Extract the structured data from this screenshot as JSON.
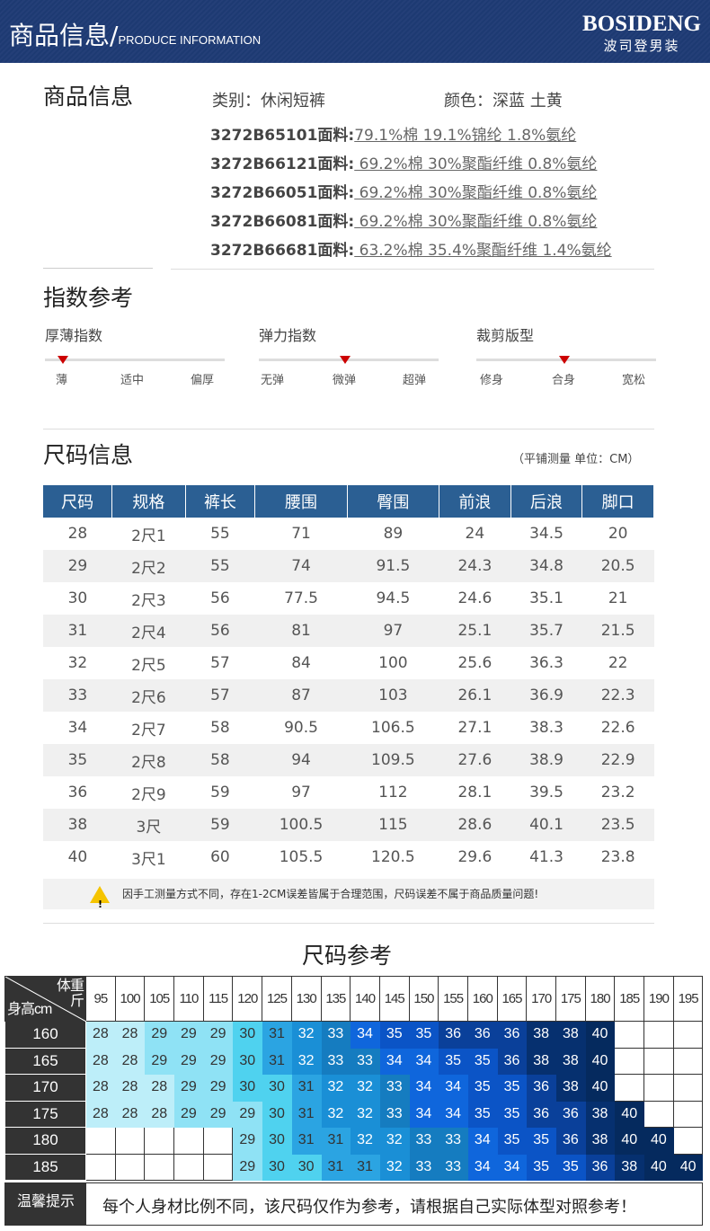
{
  "header": {
    "title": "商品信息/",
    "subtitle": "PRODUCE INFORMATION",
    "brand": "BOSIDENG",
    "brand_cn": "波司登男装"
  },
  "product": {
    "heading": "商品信息",
    "category": "类别：休闲短裤",
    "color": "颜色：深蓝 土黄",
    "fabrics": [
      {
        "code": "3272B65101面料:",
        "value": "79.1%棉 19.1%锦纶 1.8%氨纶"
      },
      {
        "code": "3272B66121面料:",
        "value": " 69.2%棉 30%聚酯纤维 0.8%氨纶"
      },
      {
        "code": "3272B66051面料:",
        "value": " 69.2%棉 30%聚酯纤维 0.8%氨纶"
      },
      {
        "code": "3272B66081面料:",
        "value": " 69.2%棉 30%聚酯纤维 0.8%氨纶"
      },
      {
        "code": "3272B66681面料:",
        "value": " 63.2%棉 35.4%聚酯纤维 1.4%氨纶"
      }
    ]
  },
  "index": {
    "heading": "指数参考",
    "items": [
      {
        "label": "厚薄指数",
        "ticks": [
          "薄",
          "适中",
          "偏厚"
        ],
        "selected": 0
      },
      {
        "label": "弹力指数",
        "ticks": [
          "无弹",
          "微弹",
          "超弹"
        ],
        "selected": 1
      },
      {
        "label": "裁剪版型",
        "ticks": [
          "修身",
          "合身",
          "宽松"
        ],
        "selected": 1
      }
    ]
  },
  "size_info": {
    "heading": "尺码信息",
    "note": "（平铺测量 单位：CM）",
    "headers": [
      "尺码",
      "规格",
      "裤长",
      "腰围",
      "臀围",
      "前浪",
      "后浪",
      "脚口"
    ],
    "rows": [
      [
        "28",
        "2尺1",
        "55",
        "71",
        "89",
        "24",
        "34.5",
        "20"
      ],
      [
        "29",
        "2尺2",
        "55",
        "74",
        "91.5",
        "24.3",
        "34.8",
        "20.5"
      ],
      [
        "30",
        "2尺3",
        "56",
        "77.5",
        "94.5",
        "24.6",
        "35.1",
        "21"
      ],
      [
        "31",
        "2尺4",
        "56",
        "81",
        "97",
        "25.1",
        "35.7",
        "21.5"
      ],
      [
        "32",
        "2尺5",
        "57",
        "84",
        "100",
        "25.6",
        "36.3",
        "22"
      ],
      [
        "33",
        "2尺6",
        "57",
        "87",
        "103",
        "26.1",
        "36.9",
        "22.3"
      ],
      [
        "34",
        "2尺7",
        "58",
        "90.5",
        "106.5",
        "27.1",
        "38.3",
        "22.6"
      ],
      [
        "35",
        "2尺8",
        "58",
        "94",
        "109.5",
        "27.6",
        "38.9",
        "22.9"
      ],
      [
        "36",
        "2尺9",
        "59",
        "97",
        "112",
        "28.1",
        "39.5",
        "23.2"
      ],
      [
        "38",
        "3尺",
        "59",
        "100.5",
        "115",
        "28.6",
        "40.1",
        "23.5"
      ],
      [
        "40",
        "3尺1",
        "60",
        "105.5",
        "120.5",
        "29.6",
        "41.3",
        "23.8"
      ]
    ],
    "warning": "因手工测量方式不同，存在1-2CM误差皆属于合理范围，尺码误差不属于商品质量问题!"
  },
  "size_ref": {
    "heading": "尺码参考",
    "corner_weight": "体重斤",
    "corner_height": "身高cm",
    "weights": [
      "95",
      "100",
      "105",
      "110",
      "115",
      "120",
      "125",
      "130",
      "135",
      "140",
      "145",
      "150",
      "155",
      "160",
      "165",
      "170",
      "175",
      "180",
      "185",
      "190",
      "195"
    ],
    "rows": [
      {
        "height": "160",
        "sizes": [
          "28",
          "28",
          "29",
          "29",
          "29",
          "30",
          "31",
          "32",
          "33",
          "34",
          "35",
          "35",
          "36",
          "36",
          "36",
          "38",
          "38",
          "40",
          "",
          "",
          ""
        ]
      },
      {
        "height": "165",
        "sizes": [
          "28",
          "28",
          "29",
          "29",
          "29",
          "30",
          "31",
          "32",
          "33",
          "33",
          "34",
          "34",
          "35",
          "35",
          "36",
          "38",
          "38",
          "40",
          "",
          "",
          ""
        ]
      },
      {
        "height": "170",
        "sizes": [
          "28",
          "28",
          "28",
          "29",
          "29",
          "30",
          "30",
          "31",
          "32",
          "32",
          "33",
          "34",
          "34",
          "35",
          "35",
          "36",
          "38",
          "40",
          "",
          "",
          ""
        ]
      },
      {
        "height": "175",
        "sizes": [
          "28",
          "28",
          "28",
          "29",
          "29",
          "29",
          "30",
          "31",
          "32",
          "32",
          "33",
          "34",
          "34",
          "35",
          "35",
          "36",
          "36",
          "38",
          "40",
          "",
          ""
        ]
      },
      {
        "height": "180",
        "sizes": [
          "",
          "",
          "",
          "",
          "",
          "29",
          "30",
          "31",
          "31",
          "32",
          "32",
          "33",
          "33",
          "34",
          "35",
          "35",
          "36",
          "38",
          "40",
          "40",
          ""
        ]
      },
      {
        "height": "185",
        "sizes": [
          "",
          "",
          "",
          "",
          "",
          "29",
          "30",
          "30",
          "31",
          "31",
          "32",
          "33",
          "33",
          "34",
          "34",
          "35",
          "35",
          "36",
          "38",
          "40",
          "40"
        ]
      }
    ],
    "tips_label": "温馨提示",
    "tips": "每个人身材比例不同，该尺码仅作为参考，请根据自己实际体型对照参考！",
    "colors": {
      "28": "#bdeef9",
      "29": "#8fe2f5",
      "30": "#4fd2ef",
      "31": "#2ba4e2",
      "32": "#1a8fd6",
      "33": "#157cc0",
      "34": "#0f66dc",
      "35": "#0b54c6",
      "36": "#0a409a",
      "38": "#06306f",
      "40": "#052a5e"
    }
  }
}
